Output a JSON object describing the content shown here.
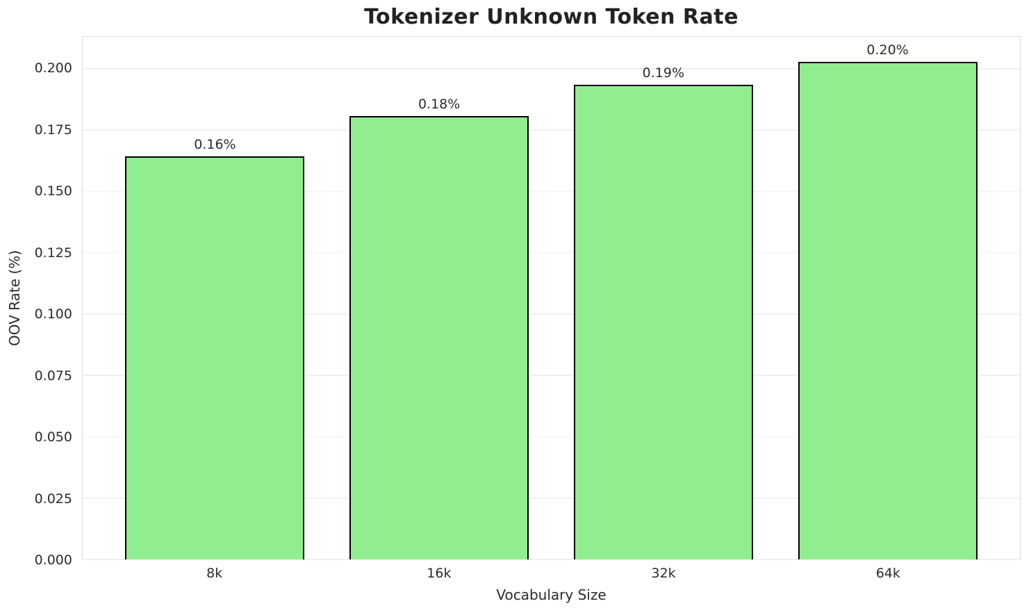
{
  "chart_data": {
    "type": "bar",
    "title": "Tokenizer Unknown Token Rate",
    "xlabel": "Vocabulary Size",
    "ylabel": "OOV Rate (%)",
    "categories": [
      "8k",
      "16k",
      "32k",
      "64k"
    ],
    "values": [
      0.1644,
      0.1808,
      0.1935,
      0.2028
    ],
    "bar_labels": [
      "0.16%",
      "0.18%",
      "0.19%",
      "0.20%"
    ],
    "yticks": [
      0.0,
      0.025,
      0.05,
      0.075,
      0.1,
      0.125,
      0.15,
      0.175,
      0.2
    ],
    "ytick_labels": [
      "0.000",
      "0.025",
      "0.050",
      "0.075",
      "0.100",
      "0.125",
      "0.150",
      "0.175",
      "0.200"
    ],
    "ylim": [
      0,
      0.213
    ],
    "xlim": [
      -0.59,
      3.59
    ],
    "bar_width": 0.8,
    "grid": "horizontal",
    "legend": "none",
    "colors": {
      "background": "#FFFFFF",
      "bar_fill": "#90EE90",
      "bar_edge": "#000000",
      "grid": "#F0F0F0",
      "spine": "#D9D9D9",
      "text": "#2B2B2B",
      "title": "#222222"
    }
  }
}
